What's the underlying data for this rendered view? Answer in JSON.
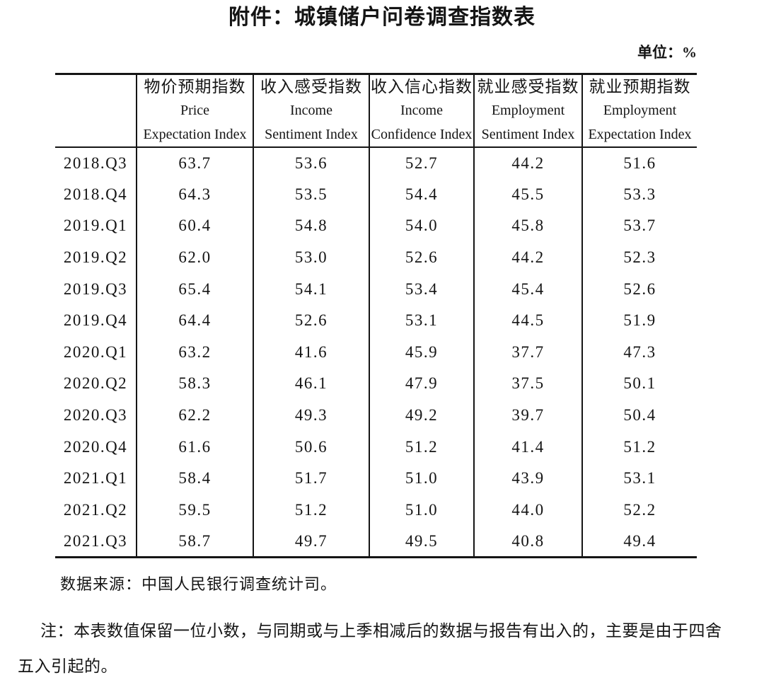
{
  "page": {
    "title": "附件：城镇储户问卷调查指数表",
    "unit_label": "单位：%"
  },
  "table": {
    "columns": [
      {
        "cn": "",
        "en1": "",
        "en2": ""
      },
      {
        "cn": "物价预期指数",
        "en1": "Price",
        "en2": "Expectation Index"
      },
      {
        "cn": "收入感受指数",
        "en1": "Income",
        "en2": "Sentiment Index"
      },
      {
        "cn": "收入信心指数",
        "en1": "Income",
        "en2": "Confidence Index"
      },
      {
        "cn": "就业感受指数",
        "en1": "Employment",
        "en2": "Sentiment Index"
      },
      {
        "cn": "就业预期指数",
        "en1": "Employment",
        "en2": "Expectation Index"
      }
    ],
    "rows": [
      {
        "quarter": "2018.Q3",
        "values": [
          "63.7",
          "53.6",
          "52.7",
          "44.2",
          "51.6"
        ]
      },
      {
        "quarter": "2018.Q4",
        "values": [
          "64.3",
          "53.5",
          "54.4",
          "45.5",
          "53.3"
        ]
      },
      {
        "quarter": "2019.Q1",
        "values": [
          "60.4",
          "54.8",
          "54.0",
          "45.8",
          "53.7"
        ]
      },
      {
        "quarter": "2019.Q2",
        "values": [
          "62.0",
          "53.0",
          "52.6",
          "44.2",
          "52.3"
        ]
      },
      {
        "quarter": "2019.Q3",
        "values": [
          "65.4",
          "54.1",
          "53.4",
          "45.4",
          "52.6"
        ]
      },
      {
        "quarter": "2019.Q4",
        "values": [
          "64.4",
          "52.6",
          "53.1",
          "44.5",
          "51.9"
        ]
      },
      {
        "quarter": "2020.Q1",
        "values": [
          "63.2",
          "41.6",
          "45.9",
          "37.7",
          "47.3"
        ]
      },
      {
        "quarter": "2020.Q2",
        "values": [
          "58.3",
          "46.1",
          "47.9",
          "37.5",
          "50.1"
        ]
      },
      {
        "quarter": "2020.Q3",
        "values": [
          "62.2",
          "49.3",
          "49.2",
          "39.7",
          "50.4"
        ]
      },
      {
        "quarter": "2020.Q4",
        "values": [
          "61.6",
          "50.6",
          "51.2",
          "41.4",
          "51.2"
        ]
      },
      {
        "quarter": "2021.Q1",
        "values": [
          "58.4",
          "51.7",
          "51.0",
          "43.9",
          "53.1"
        ]
      },
      {
        "quarter": "2021.Q2",
        "values": [
          "59.5",
          "51.2",
          "51.0",
          "44.0",
          "52.2"
        ]
      },
      {
        "quarter": "2021.Q3",
        "values": [
          "58.7",
          "49.7",
          "49.5",
          "40.8",
          "49.4"
        ]
      }
    ]
  },
  "footer": {
    "source": "数据来源：中国人民银行调查统计司。",
    "note": "注：本表数值保留一位小数，与同期或与上季相减后的数据与报告有出入的，主要是由于四舍五入引起的。"
  }
}
